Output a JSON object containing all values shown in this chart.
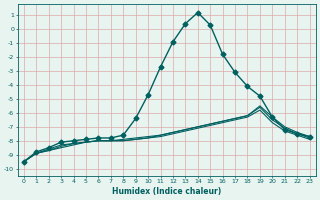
{
  "xlabel": "Humidex (Indice chaleur)",
  "background_color": "#e8f4f0",
  "grid_color": "#ddaaaa",
  "line_color": "#006060",
  "xlim": [
    -0.5,
    23.5
  ],
  "ylim": [
    -10.5,
    1.8
  ],
  "yticks": [
    1,
    0,
    -1,
    -2,
    -3,
    -4,
    -5,
    -6,
    -7,
    -8,
    -9,
    -10
  ],
  "xticks": [
    0,
    1,
    2,
    3,
    4,
    5,
    6,
    7,
    8,
    9,
    10,
    11,
    12,
    13,
    14,
    15,
    16,
    17,
    18,
    19,
    20,
    21,
    22,
    23
  ],
  "series": [
    {
      "x": [
        0,
        1,
        2,
        3,
        4,
        5,
        6,
        7,
        8,
        9,
        10,
        11,
        12,
        13,
        14,
        15,
        16,
        17,
        18,
        19,
        20,
        21,
        22,
        23
      ],
      "y": [
        -9.5,
        -8.8,
        -8.5,
        -8.1,
        -8.0,
        -7.9,
        -7.8,
        -7.8,
        -7.6,
        -6.4,
        -4.7,
        -2.7,
        -0.9,
        0.4,
        1.2,
        0.3,
        -1.8,
        -3.1,
        -4.1,
        -4.8,
        -6.3,
        -7.2,
        -7.5,
        -7.7
      ],
      "marker": "D",
      "markersize": 2.5,
      "linewidth": 1.0
    },
    {
      "x": [
        0,
        1,
        2,
        3,
        4,
        5,
        6,
        7,
        8,
        9,
        10,
        11,
        12,
        13,
        14,
        15,
        16,
        17,
        18,
        19,
        20,
        21,
        22,
        23
      ],
      "y": [
        -9.5,
        -8.9,
        -8.6,
        -8.3,
        -8.2,
        -8.1,
        -8.0,
        -8.0,
        -7.9,
        -7.8,
        -7.7,
        -7.6,
        -7.4,
        -7.2,
        -7.0,
        -6.8,
        -6.6,
        -6.4,
        -6.2,
        -5.5,
        -6.3,
        -7.0,
        -7.4,
        -7.7
      ],
      "marker": null,
      "linewidth": 0.8
    },
    {
      "x": [
        0,
        1,
        2,
        3,
        4,
        5,
        6,
        7,
        8,
        9,
        10,
        11,
        12,
        13,
        14,
        15,
        16,
        17,
        18,
        19,
        20,
        21,
        22,
        23
      ],
      "y": [
        -9.5,
        -8.9,
        -8.7,
        -8.4,
        -8.2,
        -8.1,
        -8.0,
        -8.0,
        -8.0,
        -7.9,
        -7.8,
        -7.6,
        -7.4,
        -7.2,
        -7.0,
        -6.8,
        -6.6,
        -6.4,
        -6.2,
        -5.6,
        -6.5,
        -7.1,
        -7.5,
        -7.8
      ],
      "marker": null,
      "linewidth": 0.8
    },
    {
      "x": [
        0,
        1,
        2,
        3,
        4,
        5,
        6,
        7,
        8,
        9,
        10,
        11,
        12,
        13,
        14,
        15,
        16,
        17,
        18,
        19,
        20,
        21,
        22,
        23
      ],
      "y": [
        -9.5,
        -8.9,
        -8.7,
        -8.5,
        -8.3,
        -8.1,
        -8.0,
        -8.0,
        -8.0,
        -7.9,
        -7.8,
        -7.7,
        -7.5,
        -7.3,
        -7.1,
        -6.9,
        -6.7,
        -6.5,
        -6.3,
        -5.8,
        -6.7,
        -7.3,
        -7.6,
        -7.9
      ],
      "marker": null,
      "linewidth": 0.8
    }
  ]
}
